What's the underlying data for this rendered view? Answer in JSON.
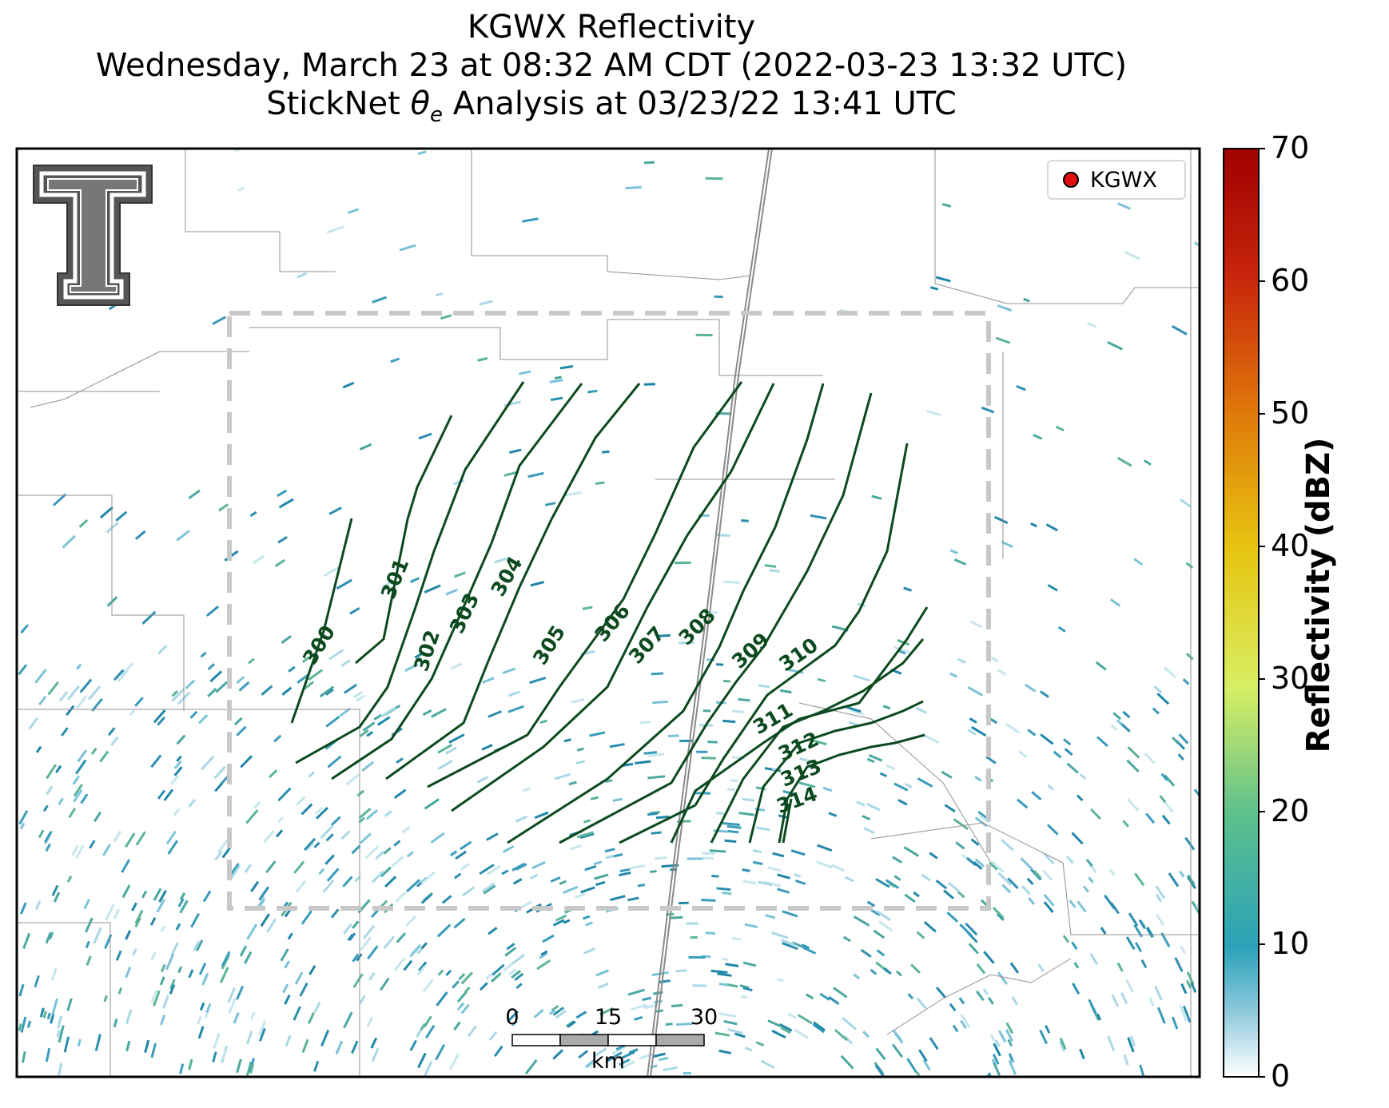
{
  "title": {
    "line1": "KGWX Reflectivity",
    "line2": "Wednesday, March 23 at 08:32 AM CDT (2022-03-23 13:32 UTC)",
    "line3_prefix": "StickNet ",
    "line3_symbol": "θ",
    "line3_sub": "e",
    "line3_suffix": " Analysis at 03/23/22 13:41 UTC"
  },
  "legend": {
    "label": "KGWX",
    "marker_color": "#e01010"
  },
  "colorbar": {
    "title": "Reflectivity (dBZ)",
    "ticks": [
      "0",
      "10",
      "20",
      "30",
      "40",
      "50",
      "60",
      "70"
    ],
    "range": [
      0,
      70
    ],
    "stops": [
      "#ffffff",
      "#8ec9dc",
      "#2aa2b8",
      "#5bbf8e",
      "#d8ee62",
      "#e6c410",
      "#e07c0a",
      "#c8260c",
      "#a00000"
    ]
  },
  "scale_bar": {
    "labels": [
      "0",
      "15",
      "30"
    ],
    "unit": "km"
  },
  "contours": {
    "variable": "theta-e",
    "color": "#0b4a1e",
    "levels": [
      "300",
      "301",
      "302",
      "303",
      "304",
      "305",
      "306",
      "307",
      "308",
      "309",
      "310",
      "311",
      "312",
      "313",
      "314"
    ]
  },
  "colors": {
    "analysis_box": "#c8c8c8",
    "border": "#909090",
    "radar": "#3a9cbb"
  },
  "logo": {
    "icon": "double-t-logo-icon"
  }
}
